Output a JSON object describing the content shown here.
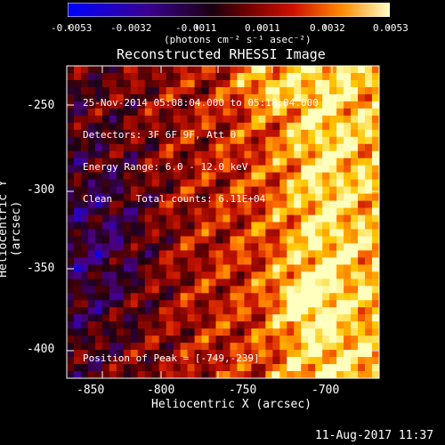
{
  "colorbar": {
    "tick_labels": [
      "-0.0053",
      "-0.0032",
      "-0.0011",
      "0.0011",
      "0.0032",
      "0.0053"
    ],
    "unit_label": "(photons cm⁻² s⁻¹ asec⁻²)"
  },
  "plot": {
    "title": "Reconstructed RHESSI Image",
    "xlabel": "Heliocentric X (arcsec)",
    "ylabel": "Heliocentric Y (arcsec)",
    "x_ticks": [
      "-850",
      "-800",
      "-750",
      "-700"
    ],
    "y_ticks": [
      "-250",
      "-300",
      "-350",
      "-400"
    ]
  },
  "info": {
    "time_range": "25-Nov-2014 05:08:04.000 to 05:18:04.000",
    "detectors": "Detectors: 3F 6F 9F, Att 0",
    "energy_range": "Energy Range: 6.0 - 12.0 keV",
    "method_counts": "Clean    Total counts: 6.11E+04",
    "peak": "Position of Peak = [-749,-239]"
  },
  "timestamp": "11-Aug-2017 11:37",
  "colors": {
    "palette": [
      "#0000ff",
      "#4a0080",
      "#000000",
      "#b00000",
      "#ff6a00",
      "#ffd000",
      "#ffffc0"
    ]
  }
}
